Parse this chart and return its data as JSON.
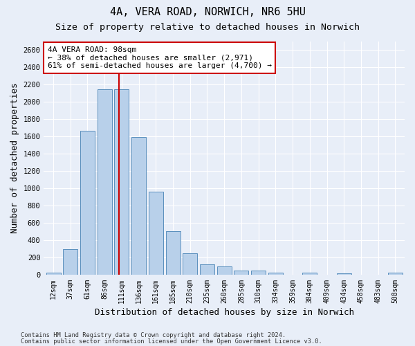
{
  "title_line1": "4A, VERA ROAD, NORWICH, NR6 5HU",
  "title_line2": "Size of property relative to detached houses in Norwich",
  "xlabel": "Distribution of detached houses by size in Norwich",
  "ylabel": "Number of detached properties",
  "categories": [
    "12sqm",
    "37sqm",
    "61sqm",
    "86sqm",
    "111sqm",
    "136sqm",
    "161sqm",
    "185sqm",
    "210sqm",
    "235sqm",
    "260sqm",
    "285sqm",
    "310sqm",
    "334sqm",
    "359sqm",
    "384sqm",
    "409sqm",
    "434sqm",
    "458sqm",
    "483sqm",
    "508sqm"
  ],
  "values": [
    25,
    300,
    1670,
    2150,
    2150,
    1595,
    960,
    505,
    250,
    120,
    100,
    50,
    50,
    30,
    0,
    30,
    0,
    20,
    0,
    0,
    25
  ],
  "bar_color": "#b8d0ea",
  "bar_edge_color": "#5a8fbd",
  "vline_x": 3.85,
  "vline_color": "#cc0000",
  "annotation_text": "4A VERA ROAD: 98sqm\n← 38% of detached houses are smaller (2,971)\n61% of semi-detached houses are larger (4,700) →",
  "annotation_box_color": "#ffffff",
  "annotation_box_edge": "#cc0000",
  "ylim": [
    0,
    2700
  ],
  "yticks": [
    0,
    200,
    400,
    600,
    800,
    1000,
    1200,
    1400,
    1600,
    1800,
    2000,
    2200,
    2400,
    2600
  ],
  "footnote1": "Contains HM Land Registry data © Crown copyright and database right 2024.",
  "footnote2": "Contains public sector information licensed under the Open Government Licence v3.0.",
  "bg_color": "#e8eef8",
  "grid_color": "#ffffff",
  "title_fontsize": 11,
  "subtitle_fontsize": 9.5,
  "label_fontsize": 9
}
